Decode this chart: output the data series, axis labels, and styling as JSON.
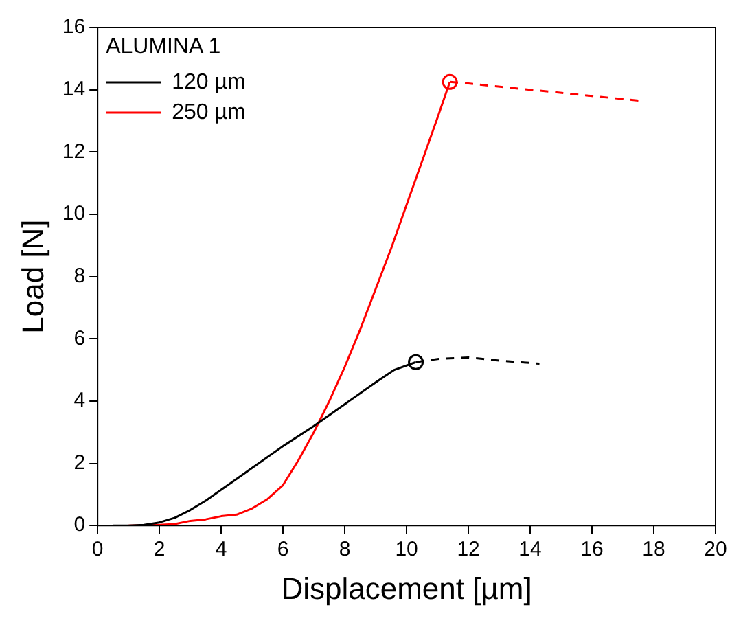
{
  "chart_data": {
    "type": "line",
    "xlabel": "Displacement [µm]",
    "ylabel": "Load [N]",
    "legend_title": "ALUMINA 1",
    "legend": "top left",
    "grid": false,
    "marker": "none",
    "xlim": [
      0,
      20
    ],
    "xticks": [
      0,
      2,
      4,
      6,
      8,
      10,
      12,
      14,
      16,
      18,
      20
    ],
    "ylim": [
      0,
      16
    ],
    "yticks": [
      0,
      2,
      4,
      6,
      8,
      10,
      12,
      14,
      16
    ],
    "series": [
      {
        "name": "120 µm",
        "line_style": "solid",
        "color": "#000000",
        "x": [
          0.5,
          1,
          1.5,
          2,
          2.5,
          3,
          3.5,
          4,
          4.5,
          5,
          6,
          7,
          8,
          9,
          9.6,
          10.3
        ],
        "values": [
          0,
          0,
          0.02,
          0.1,
          0.25,
          0.5,
          0.8,
          1.15,
          1.5,
          1.85,
          2.55,
          3.2,
          3.9,
          4.6,
          5.0,
          5.25
        ]
      },
      {
        "name": "250 µm",
        "line_style": "solid",
        "color": "#ff0000",
        "x": [
          1,
          2,
          2.5,
          3,
          3.5,
          4,
          4.5,
          5,
          5.5,
          6,
          6.5,
          7,
          7.5,
          8,
          8.5,
          9,
          9.5,
          10,
          10.5,
          11,
          11.4
        ],
        "values": [
          0,
          0.02,
          0.05,
          0.15,
          0.2,
          0.3,
          0.35,
          0.55,
          0.85,
          1.3,
          2.1,
          3.0,
          4.0,
          5.1,
          6.3,
          7.6,
          8.9,
          10.3,
          11.7,
          13.1,
          14.25
        ]
      },
      {
        "line_style": "dashed",
        "color": "#000000",
        "x": [
          10.3,
          11,
          12,
          13,
          14.3
        ],
        "values": [
          5.25,
          5.35,
          5.4,
          5.3,
          5.2
        ]
      },
      {
        "line_style": "dashed",
        "color": "#ff0000",
        "x": [
          11.4,
          12,
          14,
          16,
          17.5
        ],
        "values": [
          14.25,
          14.2,
          14.0,
          13.8,
          13.65
        ]
      },
      {
        "type": "scatter",
        "marker": "circle",
        "color": "#000000",
        "x": [
          10.3
        ],
        "values": [
          5.25
        ]
      },
      {
        "type": "scatter",
        "marker": "circle",
        "color": "#ff0000",
        "x": [
          11.4
        ],
        "values": [
          14.25
        ]
      }
    ]
  }
}
